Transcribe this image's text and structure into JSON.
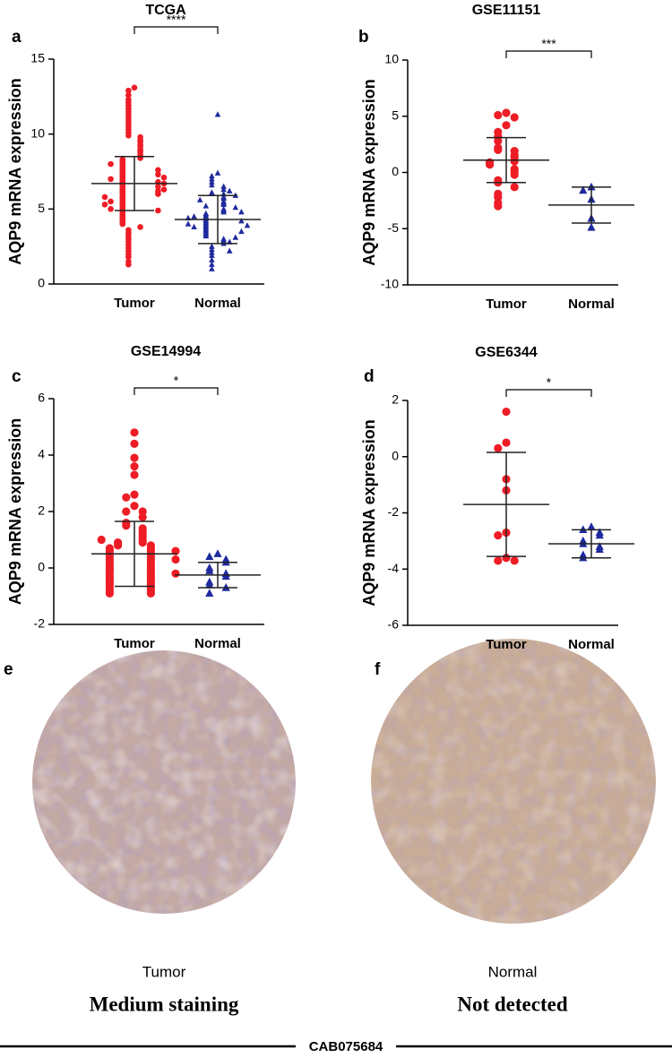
{
  "chart_data": [
    {
      "type": "strip",
      "panel": "a",
      "title": "TCGA",
      "y_label": "AQP9 mRNA expression",
      "categories": [
        "Tumor",
        "Normal"
      ],
      "significance": "****",
      "ylim": [
        0,
        15
      ],
      "yticks": [
        0,
        5,
        10,
        15
      ],
      "series": [
        {
          "color": "#ee1c25",
          "marker": "circle",
          "mean": 6.7,
          "sd": 1.8,
          "values": [
            13.1,
            12.9,
            12.6,
            12.3,
            12.1,
            11.9,
            11.7,
            11.5,
            11.3,
            11.1,
            10.9,
            10.7,
            10.5,
            10.3,
            10.1,
            9.9,
            9.8,
            9.6,
            9.5,
            9.3,
            9.2,
            9.0,
            8.9,
            8.8,
            8.6,
            8.5,
            8.4,
            8.3,
            8.2,
            8.1,
            8.0,
            7.9,
            7.8,
            7.7,
            7.6,
            7.5,
            7.4,
            7.3,
            7.2,
            7.1,
            7.0,
            6.9,
            6.8,
            6.7,
            6.6,
            6.5,
            6.4,
            6.3,
            6.2,
            6.1,
            6.0,
            5.9,
            5.8,
            5.7,
            5.6,
            5.5,
            5.4,
            5.3,
            5.2,
            5.1,
            5.0,
            4.9,
            4.8,
            4.7,
            4.6,
            4.5,
            4.4,
            4.3,
            4.2,
            4.1,
            4.0,
            3.8,
            3.6,
            3.4,
            3.2,
            3.0,
            2.8,
            2.6,
            2.4,
            2.2,
            2.0,
            1.8,
            1.5,
            1.3,
            7.0,
            6.8,
            6.5,
            6.2,
            6.0,
            7.3,
            7.6,
            5.5,
            5.0,
            8.0,
            6.7,
            6.3,
            5.8,
            7.1,
            4.9,
            5.3
          ]
        },
        {
          "color": "#1f2a9e",
          "marker": "triangle",
          "mean": 4.3,
          "sd": 1.6,
          "values": [
            11.3,
            7.4,
            7.2,
            7.0,
            6.8,
            6.6,
            6.5,
            6.3,
            6.1,
            6.0,
            5.8,
            5.7,
            5.5,
            5.4,
            5.3,
            5.2,
            5.0,
            4.9,
            4.8,
            4.7,
            4.6,
            4.5,
            4.4,
            4.3,
            4.2,
            4.1,
            4.0,
            3.9,
            3.8,
            3.7,
            3.6,
            3.5,
            3.4,
            3.3,
            3.2,
            3.0,
            2.9,
            2.7,
            2.5,
            2.3,
            2.1,
            1.9,
            1.6,
            1.3,
            1.0,
            4.5,
            4.2,
            3.8,
            5.1,
            5.6,
            3.5,
            4.8,
            6.2,
            2.8,
            3.1,
            4.0,
            5.9,
            2.2,
            4.4,
            3.9
          ]
        }
      ]
    },
    {
      "type": "strip",
      "panel": "b",
      "title": "GSE11151",
      "y_label": "AQP9 mRNA expression",
      "categories": [
        "Tumor",
        "Normal"
      ],
      "significance": "***",
      "ylim": [
        -10,
        10
      ],
      "yticks": [
        -10,
        -5,
        0,
        5,
        10
      ],
      "series": [
        {
          "color": "#ee1c25",
          "marker": "circle",
          "mean": 1.1,
          "sd": 2.0,
          "values": [
            5.3,
            5.1,
            4.9,
            4.2,
            3.6,
            3.2,
            2.8,
            2.2,
            2.0,
            1.9,
            1.5,
            1.3,
            1.0,
            0.9,
            0.7,
            0.3,
            0.1,
            -0.2,
            -0.7,
            -0.9,
            -1.3,
            -1.9,
            -2.2,
            -2.7,
            -3.0
          ]
        },
        {
          "color": "#1f2a9e",
          "marker": "triangle",
          "mean": -2.9,
          "sd": 1.6,
          "values": [
            -1.3,
            -1.6,
            -2.4,
            -4.1,
            -4.9
          ]
        }
      ]
    },
    {
      "type": "strip",
      "panel": "c",
      "title": "GSE14994",
      "y_label": "AQP9 mRNA expression",
      "categories": [
        "Tumor",
        "Normal"
      ],
      "significance": "*",
      "ylim": [
        -2,
        6
      ],
      "yticks": [
        -2,
        0,
        2,
        4,
        6
      ],
      "series": [
        {
          "color": "#ee1c25",
          "marker": "circle",
          "mean": 0.5,
          "sd": 1.15,
          "values": [
            4.8,
            4.4,
            3.9,
            3.6,
            3.3,
            2.6,
            2.5,
            2.2,
            2.0,
            2.0,
            1.8,
            1.6,
            1.5,
            1.4,
            1.3,
            1.2,
            1.1,
            1.0,
            0.9,
            0.9,
            0.8,
            0.8,
            0.7,
            0.7,
            0.6,
            0.6,
            0.5,
            0.5,
            0.4,
            0.4,
            0.3,
            0.3,
            0.2,
            0.2,
            0.1,
            0.1,
            0.0,
            0.0,
            -0.1,
            -0.1,
            -0.2,
            -0.2,
            -0.3,
            -0.3,
            -0.4,
            -0.4,
            -0.5,
            -0.5,
            -0.6,
            -0.6,
            -0.7,
            -0.7,
            -0.8,
            -0.8,
            -0.9,
            -0.9,
            0.6,
            0.3,
            1.0,
            -0.2
          ]
        },
        {
          "color": "#1f2a9e",
          "marker": "triangle",
          "mean": -0.25,
          "sd": 0.45,
          "values": [
            0.5,
            0.4,
            0.3,
            0.2,
            0.0,
            -0.1,
            -0.2,
            -0.3,
            -0.5,
            -0.6,
            -0.7,
            -0.9
          ]
        }
      ]
    },
    {
      "type": "strip",
      "panel": "d",
      "title": "GSE6344",
      "y_label": "AQP9 mRNA expression",
      "categories": [
        "Tumor",
        "Normal"
      ],
      "significance": "*",
      "ylim": [
        -6,
        2
      ],
      "yticks": [
        -6,
        -4,
        -2,
        0,
        2
      ],
      "series": [
        {
          "color": "#ee1c25",
          "marker": "circle",
          "mean": -1.7,
          "sd": 1.85,
          "values": [
            1.6,
            0.5,
            0.3,
            -0.8,
            -1.2,
            -2.7,
            -2.8,
            -3.6,
            -3.7,
            -3.7
          ]
        },
        {
          "color": "#1f2a9e",
          "marker": "triangle",
          "mean": -3.1,
          "sd": 0.5,
          "values": [
            -2.5,
            -2.6,
            -2.7,
            -2.8,
            -3.0,
            -3.1,
            -3.2,
            -3.3,
            -3.5,
            -3.6
          ]
        }
      ]
    }
  ],
  "images": [
    {
      "panel": "e",
      "caption": "Tumor",
      "staining": "Medium staining"
    },
    {
      "panel": "f",
      "caption": "Normal",
      "staining": "Not detected"
    }
  ],
  "antibody": "CAB075684"
}
